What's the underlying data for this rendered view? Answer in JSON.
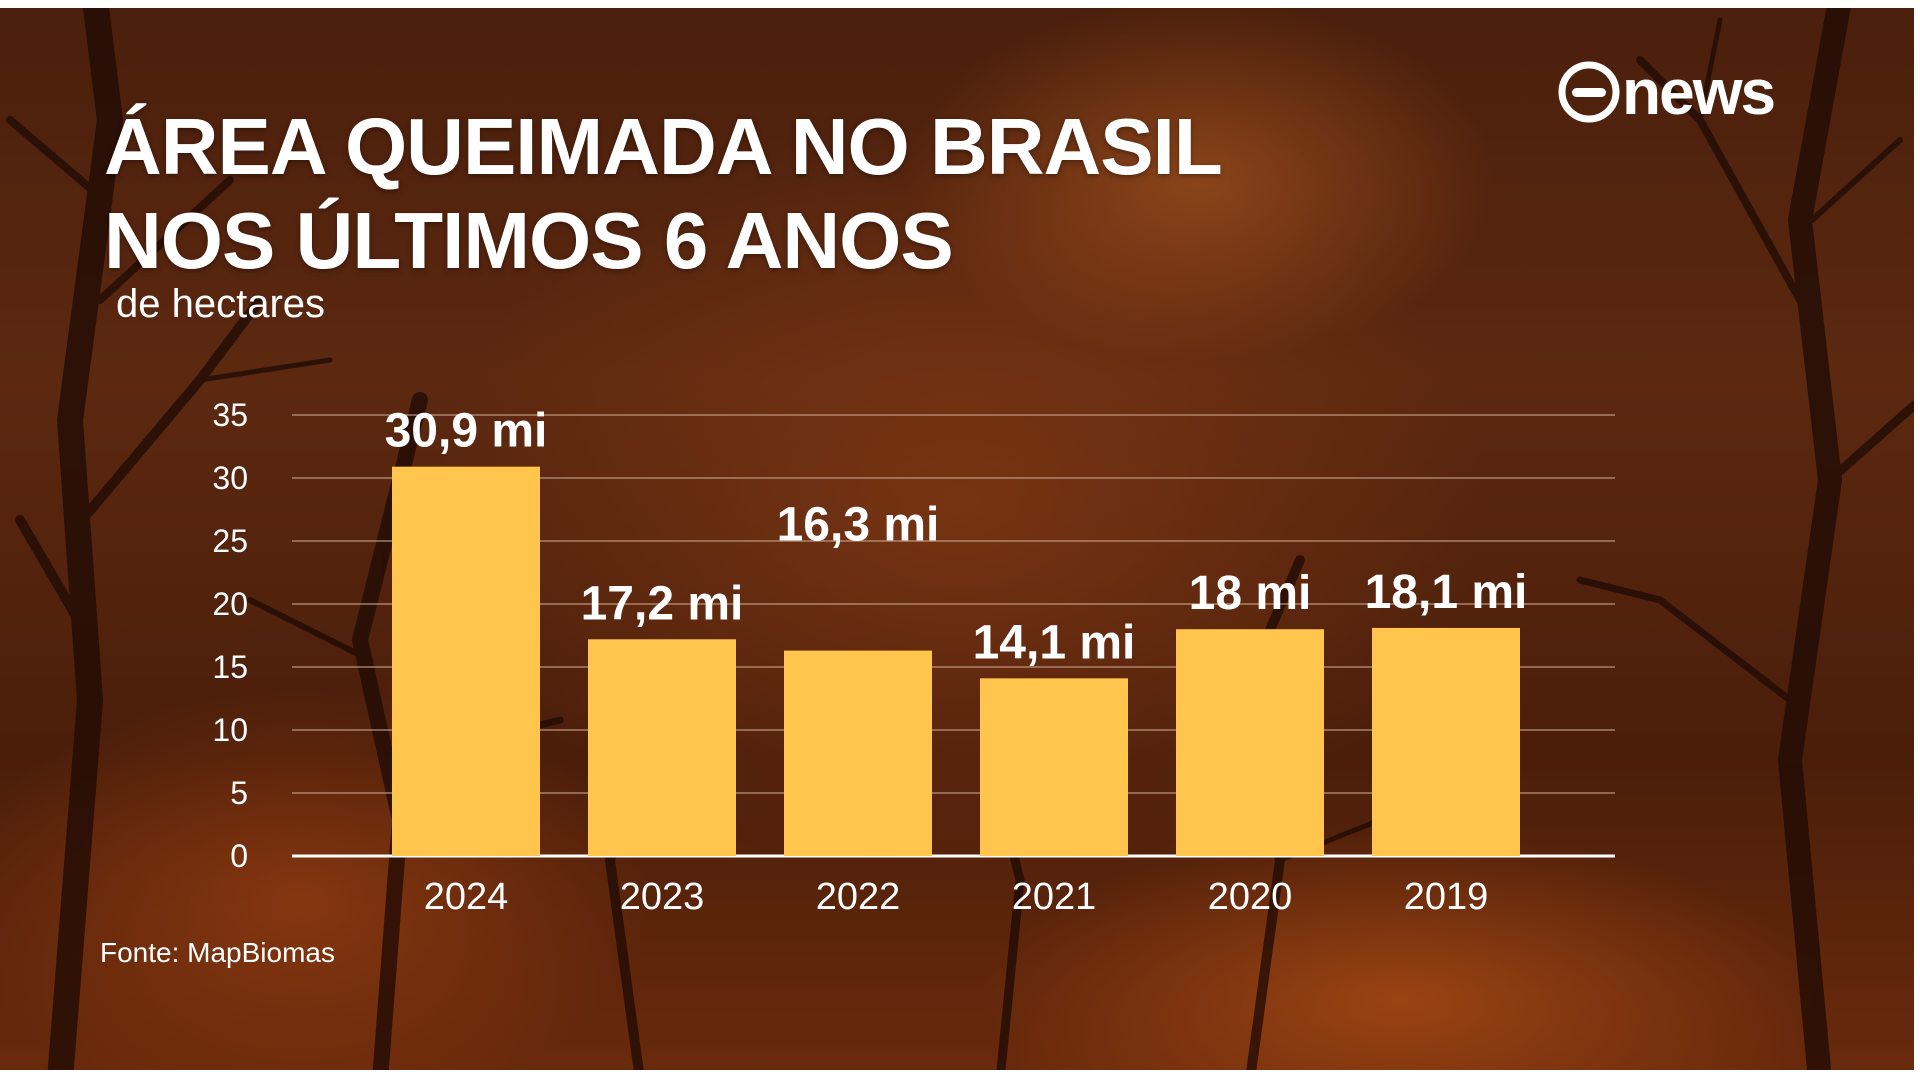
{
  "title_line1": "ÁREA QUEIMADA NO BRASIL",
  "title_line2": "NOS ÚLTIMOS 6 ANOS",
  "subtitle": "de hectares",
  "source": "Fonte: MapBiomas",
  "logo_text": "news",
  "colors": {
    "bar": "#FFC54D",
    "grid": "#c9a58c",
    "text": "#FFFFFF"
  },
  "chart_data": {
    "type": "bar",
    "title": "ÁREA QUEIMADA NO BRASIL NOS ÚLTIMOS 6 ANOS",
    "ylabel": "de hectares",
    "categories": [
      "2024",
      "2023",
      "2022",
      "2021",
      "2020",
      "2019"
    ],
    "values": [
      30.9,
      17.2,
      16.3,
      14.1,
      18.0,
      18.1
    ],
    "data_labels": [
      "30,9 mi",
      "17,2 mi",
      "16,3 mi",
      "14,1 mi",
      "18 mi",
      "18,1 mi"
    ],
    "yticks": [
      0,
      5,
      10,
      15,
      20,
      25,
      30,
      35
    ],
    "ylim": [
      0,
      35
    ],
    "grid": true,
    "legend": "none"
  }
}
